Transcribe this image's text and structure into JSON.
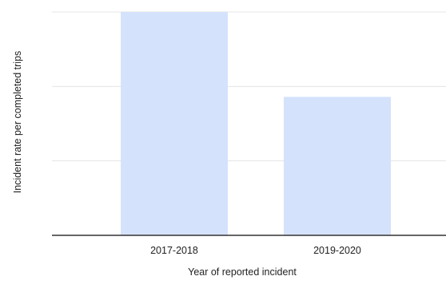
{
  "chart_data": {
    "type": "bar",
    "categories": [
      "2017-2018",
      "2019-2020"
    ],
    "values": [
      1.0,
      0.62
    ],
    "xlabel": "Year of reported incident",
    "ylabel": "Incident rate per completed trips",
    "ylim": [
      0,
      1.0
    ],
    "grid": true,
    "legend": "none"
  },
  "colors": {
    "bar": "#d5e2fc",
    "gridline": "#e4e4e4",
    "axis": "#333333",
    "text": "#222222"
  }
}
